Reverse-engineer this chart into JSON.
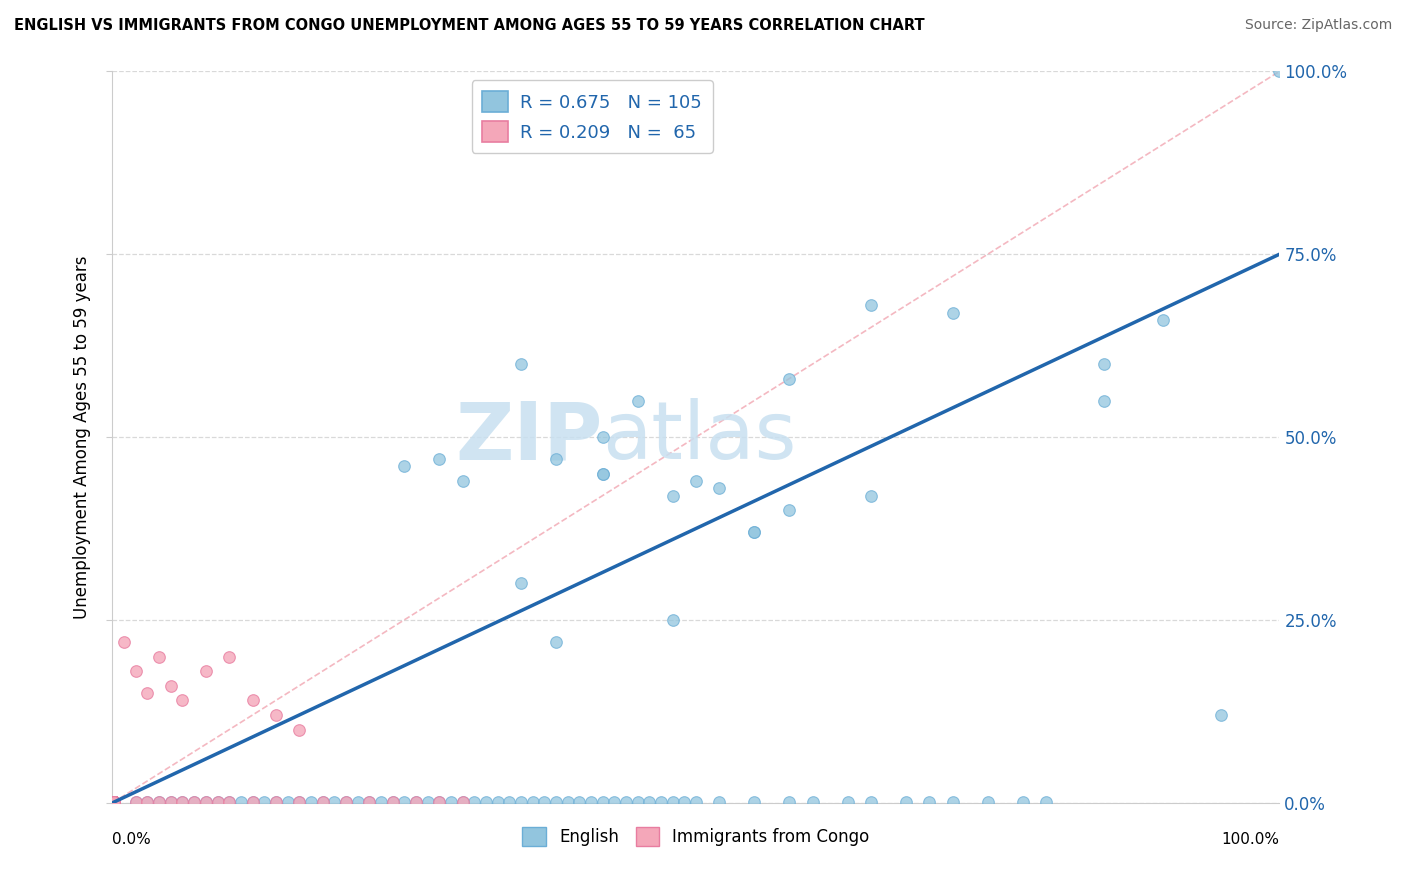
{
  "title": "ENGLISH VS IMMIGRANTS FROM CONGO UNEMPLOYMENT AMONG AGES 55 TO 59 YEARS CORRELATION CHART",
  "source": "Source: ZipAtlas.com",
  "ylabel": "Unemployment Among Ages 55 to 59 years",
  "watermark_zip": "ZIP",
  "watermark_atlas": "atlas",
  "legend_english_R": "0.675",
  "legend_english_N": "105",
  "legend_congo_R": "0.209",
  "legend_congo_N": "65",
  "english_color": "#92c5de",
  "english_edge": "#6baed6",
  "congo_color": "#f4a7b9",
  "congo_edge": "#e87da0",
  "trendline_color": "#2166ac",
  "dashed_line_color": "#f4b8c1",
  "grid_color": "#d9d9d9",
  "ytick_color": "#2166ac",
  "right_tick_labels": [
    "0.0%",
    "25.0%",
    "50.0%",
    "75.0%",
    "100.0%"
  ],
  "ytick_values": [
    0.0,
    0.25,
    0.5,
    0.75,
    1.0
  ],
  "trendline_slope": 0.75,
  "trendline_intercept": 0.0,
  "english_x": [
    0.001,
    0.001,
    0.001,
    0.001,
    0.001,
    0.001,
    0.001,
    0.001,
    0.001,
    0.001,
    0.001,
    0.001,
    0.001,
    0.001,
    0.001,
    0.001,
    0.001,
    0.001,
    0.001,
    0.001,
    0.001,
    0.001,
    0.001,
    0.001,
    0.001,
    0.001,
    0.001,
    0.001,
    0.001,
    0.001,
    0.02,
    0.03,
    0.04,
    0.05,
    0.06,
    0.07,
    0.08,
    0.09,
    0.1,
    0.11,
    0.12,
    0.13,
    0.14,
    0.15,
    0.16,
    0.17,
    0.18,
    0.19,
    0.2,
    0.21,
    0.22,
    0.23,
    0.24,
    0.25,
    0.26,
    0.27,
    0.28,
    0.29,
    0.3,
    0.31,
    0.32,
    0.33,
    0.34,
    0.35,
    0.36,
    0.37,
    0.38,
    0.39,
    0.4,
    0.41,
    0.42,
    0.43,
    0.44,
    0.45,
    0.46,
    0.47,
    0.48,
    0.49,
    0.5,
    0.52,
    0.55,
    0.58,
    0.6,
    0.63,
    0.65,
    0.68,
    0.7,
    0.72,
    0.75,
    0.78,
    0.8,
    0.35,
    0.38,
    0.42,
    0.5,
    0.55,
    0.28,
    0.58,
    0.72,
    0.85,
    0.9,
    0.65,
    1.0,
    0.85,
    0.95
  ],
  "english_y": [
    0.001,
    0.001,
    0.001,
    0.001,
    0.001,
    0.001,
    0.001,
    0.001,
    0.001,
    0.001,
    0.001,
    0.001,
    0.001,
    0.001,
    0.001,
    0.001,
    0.001,
    0.001,
    0.001,
    0.001,
    0.001,
    0.001,
    0.001,
    0.001,
    0.001,
    0.001,
    0.001,
    0.001,
    0.001,
    0.001,
    0.001,
    0.001,
    0.001,
    0.001,
    0.001,
    0.001,
    0.001,
    0.001,
    0.001,
    0.001,
    0.001,
    0.001,
    0.001,
    0.001,
    0.001,
    0.001,
    0.001,
    0.001,
    0.001,
    0.001,
    0.001,
    0.001,
    0.001,
    0.001,
    0.001,
    0.001,
    0.001,
    0.001,
    0.001,
    0.001,
    0.001,
    0.001,
    0.001,
    0.001,
    0.001,
    0.001,
    0.001,
    0.001,
    0.001,
    0.001,
    0.001,
    0.001,
    0.001,
    0.001,
    0.001,
    0.001,
    0.001,
    0.001,
    0.001,
    0.001,
    0.001,
    0.001,
    0.001,
    0.001,
    0.001,
    0.001,
    0.001,
    0.001,
    0.001,
    0.001,
    0.001,
    0.3,
    0.22,
    0.45,
    0.44,
    0.37,
    0.47,
    0.58,
    0.67,
    0.6,
    0.66,
    0.68,
    1.0,
    0.55,
    0.12
  ],
  "english_outliers_x": [
    0.35,
    0.42,
    0.45,
    0.3,
    0.48,
    0.38,
    0.52,
    0.42,
    0.25,
    0.55,
    0.48,
    0.58,
    0.65
  ],
  "english_outliers_y": [
    0.6,
    0.45,
    0.55,
    0.44,
    0.42,
    0.47,
    0.43,
    0.5,
    0.46,
    0.37,
    0.25,
    0.4,
    0.42
  ],
  "congo_x": [
    0.001,
    0.001,
    0.001,
    0.001,
    0.001,
    0.001,
    0.001,
    0.001,
    0.001,
    0.001,
    0.001,
    0.001,
    0.001,
    0.001,
    0.001,
    0.001,
    0.001,
    0.001,
    0.001,
    0.001,
    0.001,
    0.001,
    0.001,
    0.001,
    0.001,
    0.001,
    0.001,
    0.001,
    0.001,
    0.001,
    0.001,
    0.001,
    0.001,
    0.001,
    0.001,
    0.02,
    0.03,
    0.04,
    0.05,
    0.06,
    0.07,
    0.08,
    0.09,
    0.1,
    0.12,
    0.14,
    0.16,
    0.18,
    0.2,
    0.22,
    0.24,
    0.26,
    0.28,
    0.3,
    0.01,
    0.02,
    0.03,
    0.04,
    0.05,
    0.06,
    0.08,
    0.1,
    0.12,
    0.14,
    0.16
  ],
  "congo_y": [
    0.001,
    0.001,
    0.001,
    0.001,
    0.001,
    0.001,
    0.001,
    0.001,
    0.001,
    0.001,
    0.001,
    0.001,
    0.001,
    0.001,
    0.001,
    0.001,
    0.001,
    0.001,
    0.001,
    0.001,
    0.001,
    0.001,
    0.001,
    0.001,
    0.001,
    0.001,
    0.001,
    0.001,
    0.001,
    0.001,
    0.001,
    0.001,
    0.001,
    0.001,
    0.001,
    0.001,
    0.001,
    0.001,
    0.001,
    0.001,
    0.001,
    0.001,
    0.001,
    0.001,
    0.001,
    0.001,
    0.001,
    0.001,
    0.001,
    0.001,
    0.001,
    0.001,
    0.001,
    0.001,
    0.22,
    0.18,
    0.15,
    0.2,
    0.16,
    0.14,
    0.18,
    0.2,
    0.14,
    0.12,
    0.1
  ]
}
